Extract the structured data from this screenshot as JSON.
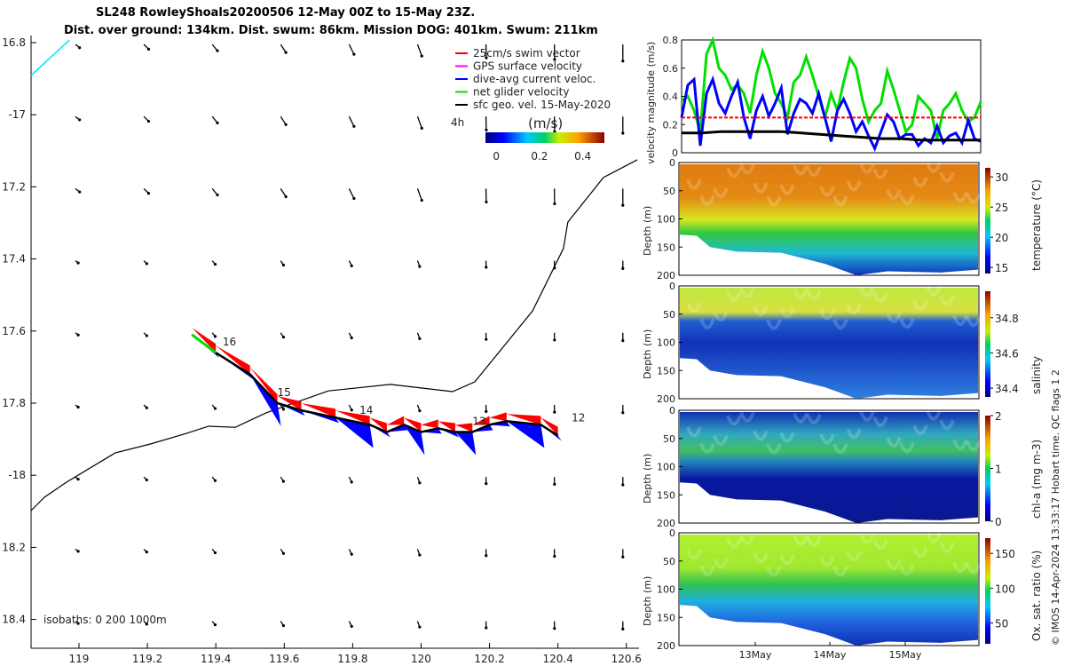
{
  "title": {
    "line1": "SL248 RowleyShoals20200506 12-May 00Z to 15-May 23Z.",
    "line2": "Dist. over ground: 134km. Dist. swum: 86km. Mission DOG: 401km. Swum: 211km"
  },
  "footer_credit": "© IMOS 14-Apr-2024 13:33:17 Hobart time. QC flags 1  2",
  "colors": {
    "swim": "#ff0000",
    "gps": "#ff00ff",
    "current": "#0000ff",
    "net": "#00e000",
    "geo": "#000000",
    "isobath_0": "#00e5ff"
  },
  "chart_data": [
    {
      "type": "map",
      "name": "track-map",
      "xlim": [
        118.86,
        120.63
      ],
      "ylim": [
        -18.52,
        -16.8
      ],
      "xticks": [
        119,
        119.2,
        119.4,
        119.6,
        119.8,
        120,
        120.2,
        120.4,
        120.6
      ],
      "xtick_labels": [
        "119",
        "119.2",
        "119.4",
        "119.6",
        "119.8",
        "120",
        "120.2",
        "120.4",
        "120.6"
      ],
      "yticks": [
        -16.8,
        -17,
        -17.2,
        -17.4,
        -17.6,
        -17.8,
        -18,
        -18.2,
        -18.4
      ],
      "ytick_labels": [
        "16.8",
        "-17",
        "17.2",
        "17.4",
        "17.6",
        "17.8",
        "-18",
        "18.2",
        "18.4"
      ],
      "legend": [
        "25cm/s swim vector",
        "GPS surface velocity",
        "dive-avg current veloc.",
        "net glider velocity",
        "sfc geo. vel. 15-May-2020"
      ],
      "legend_placement": "top-right",
      "scale_label": "4h",
      "colorbar": {
        "label": "(m/s)",
        "ticks": [
          "0",
          "0.2",
          "0.4"
        ],
        "range": [
          -0.05,
          0.5
        ]
      },
      "isobath_label": "isobaths: 0   200  1000m",
      "track": [
        [
          119.33,
          -17.61
        ],
        [
          119.4,
          -17.66
        ],
        [
          119.5,
          -17.72
        ],
        [
          119.58,
          -17.8
        ],
        [
          119.65,
          -17.82
        ],
        [
          119.75,
          -17.84
        ],
        [
          119.85,
          -17.86
        ],
        [
          119.9,
          -17.88
        ],
        [
          119.95,
          -17.86
        ],
        [
          120.0,
          -17.88
        ],
        [
          120.05,
          -17.87
        ],
        [
          120.1,
          -17.88
        ],
        [
          120.15,
          -17.88
        ],
        [
          120.2,
          -17.86
        ],
        [
          120.25,
          -17.85
        ],
        [
          120.35,
          -17.86
        ],
        [
          120.4,
          -17.89
        ]
      ],
      "day_labels": [
        {
          "t": "16",
          "lon": 119.42,
          "lat": -17.64
        },
        {
          "t": "15",
          "lon": 119.58,
          "lat": -17.78
        },
        {
          "t": "14",
          "lon": 119.82,
          "lat": -17.83
        },
        {
          "t": "13",
          "lon": 120.15,
          "lat": -17.86
        },
        {
          "t": "12",
          "lon": 120.44,
          "lat": -17.85
        }
      ],
      "isobath_200": [
        [
          118.86,
          -18.098
        ],
        [
          118.899,
          -18.061
        ],
        [
          118.964,
          -18.019
        ],
        [
          119.106,
          -17.938
        ],
        [
          119.21,
          -17.913
        ],
        [
          119.314,
          -17.884
        ],
        [
          119.379,
          -17.864
        ],
        [
          119.457,
          -17.867
        ],
        [
          119.547,
          -17.827
        ],
        [
          119.729,
          -17.766
        ],
        [
          119.91,
          -17.748
        ],
        [
          120.092,
          -17.768
        ],
        [
          120.157,
          -17.741
        ],
        [
          120.326,
          -17.544
        ],
        [
          120.416,
          -17.371
        ],
        [
          120.429,
          -17.298
        ],
        [
          120.533,
          -17.174
        ],
        [
          120.632,
          -17.125
        ]
      ],
      "isobath_0": [
        [
          118.86,
          -16.891
        ],
        [
          118.972,
          -16.793
        ]
      ]
    },
    {
      "type": "line",
      "name": "velocity-magnitude",
      "ylabel": "velocity magnitude (m/s)",
      "ylim": [
        0,
        0.8
      ],
      "yticks": [
        "0",
        "0.2",
        "0.4",
        "0.6",
        "0.8"
      ],
      "xlim_days": [
        0,
        4
      ],
      "series": [
        {
          "name": "net glider velocity",
          "color": "#00e000",
          "values": [
            0.37,
            0.4,
            0.3,
            0.15,
            0.7,
            0.8,
            0.6,
            0.55,
            0.45,
            0.48,
            0.42,
            0.28,
            0.55,
            0.72,
            0.6,
            0.42,
            0.35,
            0.25,
            0.5,
            0.55,
            0.68,
            0.55,
            0.4,
            0.25,
            0.42,
            0.3,
            0.5,
            0.67,
            0.6,
            0.38,
            0.22,
            0.3,
            0.35,
            0.58,
            0.45,
            0.3,
            0.15,
            0.2,
            0.4,
            0.35,
            0.3,
            0.1,
            0.3,
            0.35,
            0.42,
            0.3,
            0.22,
            0.25,
            0.36
          ]
        },
        {
          "name": "dive-avg current veloc.",
          "color": "#0000ff",
          "values": [
            0.25,
            0.48,
            0.52,
            0.05,
            0.42,
            0.52,
            0.35,
            0.28,
            0.4,
            0.5,
            0.25,
            0.1,
            0.3,
            0.4,
            0.26,
            0.35,
            0.46,
            0.13,
            0.28,
            0.38,
            0.35,
            0.28,
            0.42,
            0.25,
            0.08,
            0.3,
            0.38,
            0.28,
            0.15,
            0.22,
            0.12,
            0.03,
            0.15,
            0.27,
            0.22,
            0.1,
            0.13,
            0.13,
            0.05,
            0.1,
            0.07,
            0.19,
            0.07,
            0.12,
            0.14,
            0.07,
            0.23,
            0.1,
            0.08
          ]
        },
        {
          "name": "sfc geo. vel.",
          "color": "#000000",
          "values": [
            0.14,
            0.14,
            0.15,
            0.15,
            0.15,
            0.15,
            0.14,
            0.13,
            0.12,
            0.11,
            0.1,
            0.1,
            0.09,
            0.09,
            0.09,
            0.09
          ]
        },
        {
          "name": "swim",
          "color": "#ff0000",
          "values": [
            0.25,
            0.25
          ]
        }
      ]
    },
    {
      "type": "heatmap",
      "sections": [
        {
          "name": "temperature",
          "label": "temperature (°C)",
          "ticks": [
            "15",
            "20",
            "25",
            "30"
          ],
          "tick_vals": [
            15,
            20,
            25,
            30
          ],
          "range": [
            14,
            31.5
          ]
        },
        {
          "name": "salinity",
          "label": "salinity",
          "ticks": [
            "34.4",
            "34.6",
            "34.8"
          ],
          "tick_vals": [
            34.4,
            34.6,
            34.8
          ],
          "range": [
            34.35,
            34.95
          ]
        },
        {
          "name": "chl-a",
          "label": "chl-a (mg m-3)",
          "ticks": [
            "0",
            "1",
            "2"
          ],
          "tick_vals": [
            0,
            1,
            2
          ],
          "range": [
            0,
            2
          ]
        },
        {
          "name": "oxygen",
          "label": "Ox. sat. ratio (%)",
          "ticks": [
            "50",
            "100",
            "150"
          ],
          "tick_vals": [
            50,
            100,
            150
          ],
          "range": [
            20,
            172
          ]
        }
      ],
      "ylabel": "Depth (m)",
      "yticks": [
        "0",
        "50",
        "100",
        "150",
        "200"
      ],
      "xticks": [
        "13May",
        "14May",
        "15May"
      ]
    }
  ]
}
